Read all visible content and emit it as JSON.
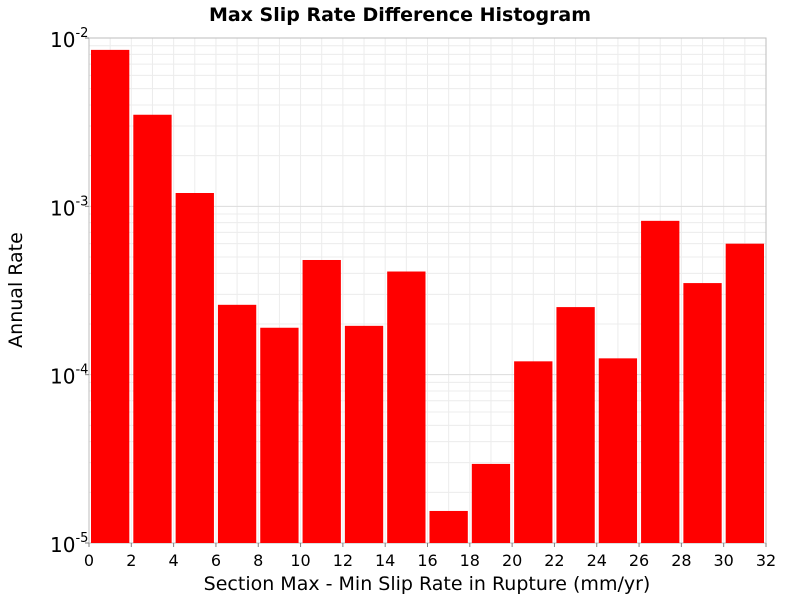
{
  "chart_data": {
    "type": "bar",
    "title": "Max Slip Rate Difference Histogram",
    "xlabel": "Section Max - Min Slip Rate in Rupture (mm/yr)",
    "ylabel": "Annual Rate",
    "xlim": [
      0,
      32
    ],
    "ylim": [
      1e-05,
      0.01
    ],
    "yscale": "log",
    "grid": true,
    "bar_color": "#ff0000",
    "bin_width": 2,
    "x": [
      1,
      3,
      5,
      7,
      9,
      11,
      13,
      15,
      17,
      19,
      21,
      23,
      25,
      27,
      29,
      31
    ],
    "values": [
      0.0085,
      0.0035,
      0.0012,
      0.00026,
      0.00019,
      0.00048,
      0.000195,
      0.00041,
      1.55e-05,
      2.95e-05,
      0.00012,
      0.000252,
      0.000125,
      0.00082,
      0.00035,
      0.0006
    ],
    "xticks": [
      "0",
      "2",
      "4",
      "6",
      "8",
      "10",
      "12",
      "14",
      "16",
      "18",
      "20",
      "22",
      "24",
      "26",
      "28",
      "30",
      "32"
    ],
    "yticks": [
      {
        "base": "10",
        "exp": "-5"
      },
      {
        "base": "10",
        "exp": "-4"
      },
      {
        "base": "10",
        "exp": "-3"
      },
      {
        "base": "10",
        "exp": "-2"
      }
    ]
  }
}
